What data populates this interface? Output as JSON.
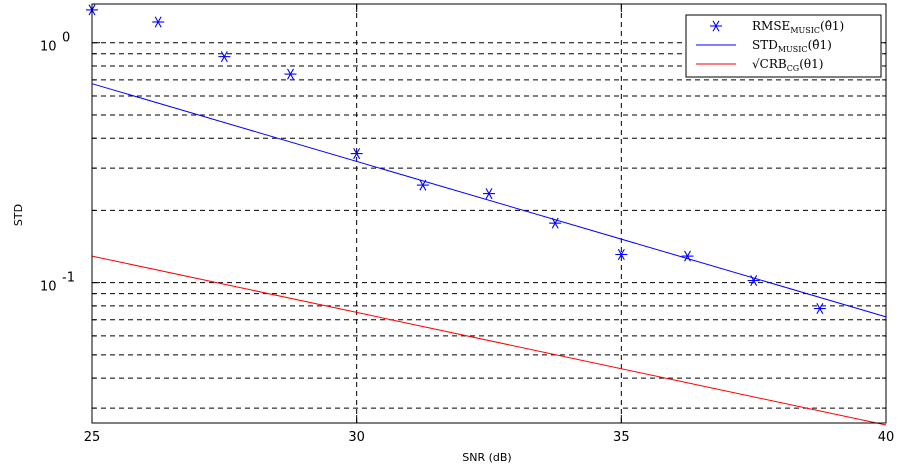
{
  "chart_data": {
    "type": "line",
    "xlabel": "SNR (dB)",
    "ylabel": "STD",
    "yscale": "log",
    "xlim": [
      25,
      40
    ],
    "ylim": [
      0.026,
      1.45
    ],
    "x_ticks": [
      25,
      30,
      35,
      40
    ],
    "x_tick_labels": [
      "25",
      "30",
      "35",
      "40"
    ],
    "y_major_ticks": [
      0.1,
      1
    ],
    "y_tick_labels": [
      {
        "base": "10",
        "exp": "-1",
        "value": 0.1
      },
      {
        "base": "10",
        "exp": "0",
        "value": 1
      }
    ],
    "grid": true,
    "legend_position": "top-right",
    "series": [
      {
        "name": "RMSE",
        "name_sub": "MUSIC",
        "name_arg": "(θ̂1)",
        "kind": "markers",
        "marker": "asterisk",
        "color": "#0000ff",
        "x": [
          25,
          26.25,
          27.5,
          28.75,
          30,
          31.25,
          32.5,
          33.75,
          35,
          36.25,
          37.5,
          38.75
        ],
        "y": [
          1.37,
          1.22,
          0.875,
          0.74,
          0.345,
          0.255,
          0.235,
          0.177,
          0.131,
          0.129,
          0.102,
          0.078
        ]
      },
      {
        "name": "STD",
        "name_sub": "MUSIC",
        "name_arg": "(θ̂1)",
        "kind": "line",
        "color": "#0000ff",
        "x": [
          25,
          40
        ],
        "y": [
          0.675,
          0.072
        ]
      },
      {
        "name": "√CRB",
        "name_sub": "CG",
        "name_arg": "(θ1)",
        "kind": "line",
        "color": "#ff0000",
        "x": [
          25,
          40
        ],
        "y": [
          0.129,
          0.0255
        ]
      }
    ]
  }
}
